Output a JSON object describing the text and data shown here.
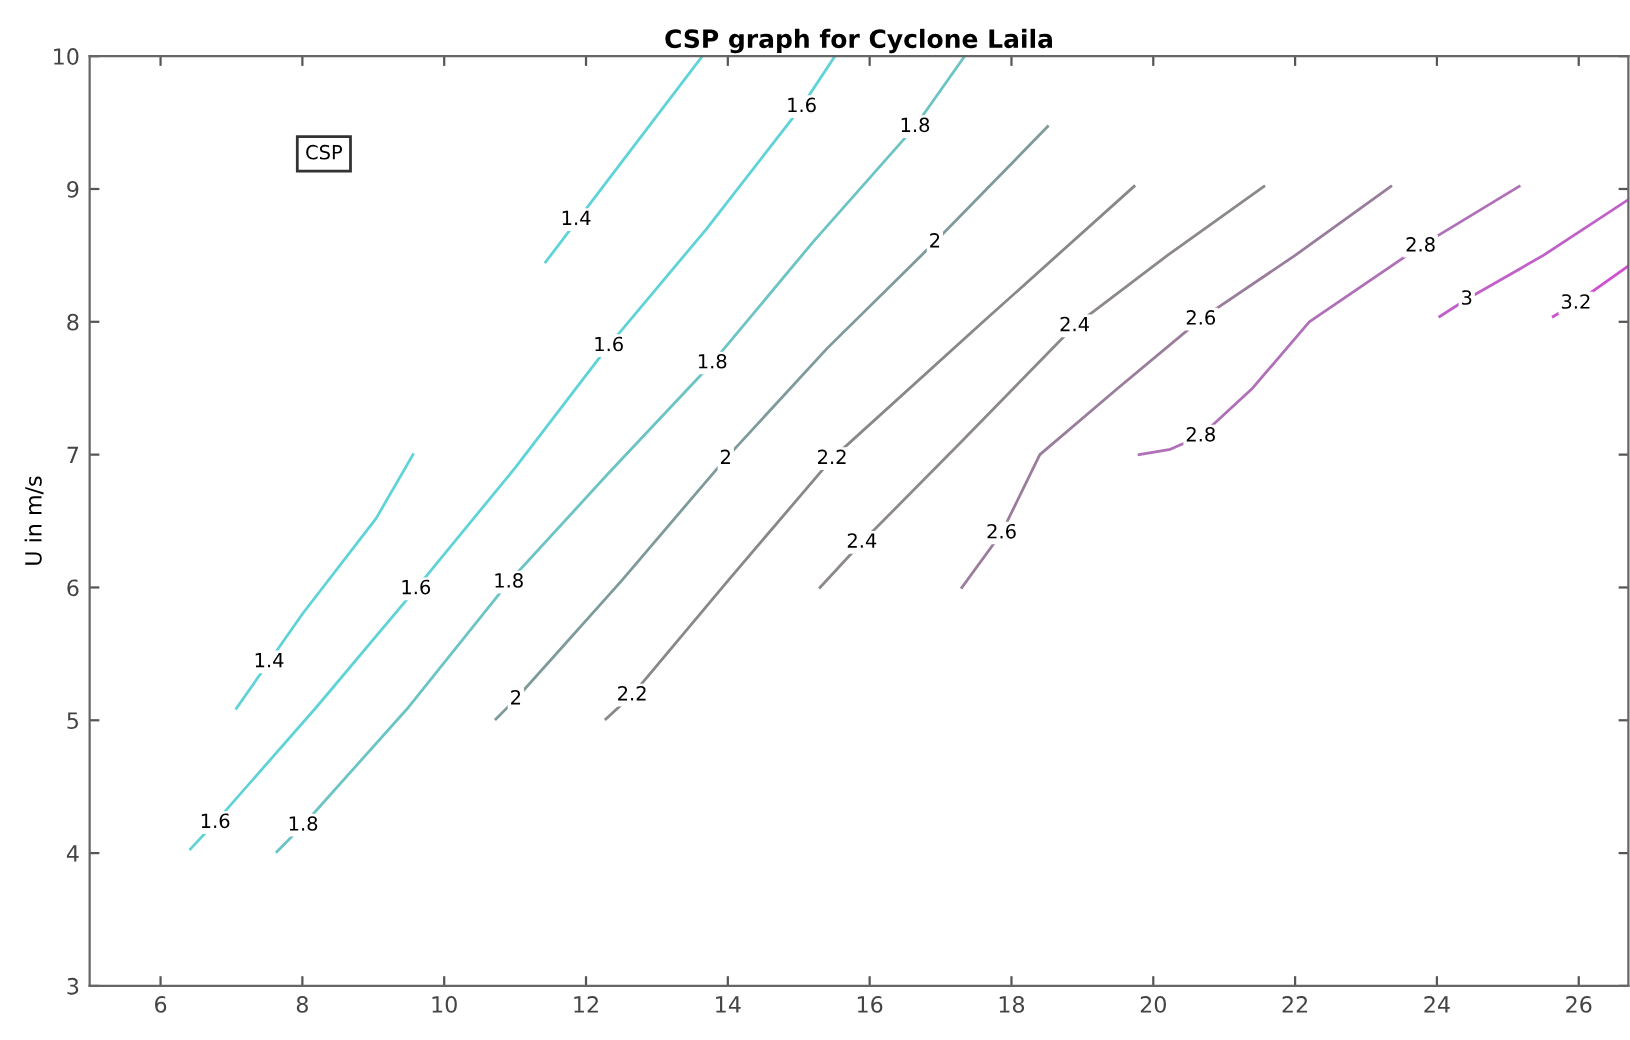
{
  "chart_data": {
    "type": "line",
    "title": "CSP graph for Cyclone Laila",
    "ylabel": "U in m/s",
    "grid": false,
    "xlim": [
      5,
      26.7
    ],
    "ylim": [
      3,
      10
    ],
    "xticks": [
      6,
      8,
      10,
      12,
      14,
      16,
      18,
      20,
      22,
      24,
      26
    ],
    "yticks": [
      3,
      4,
      5,
      6,
      7,
      8,
      9,
      10
    ],
    "series": [
      {
        "color": "#5fd3d8",
        "x": [
          7.07,
          8.0,
          9.04,
          9.56
        ],
        "values": [
          5.09,
          5.8,
          6.52,
          7.0
        ]
      },
      {
        "color": "#5fd3d8",
        "x": [
          11.43,
          12.5,
          13.64
        ],
        "values": [
          8.45,
          9.2,
          10.0
        ]
      },
      {
        "color": "#5fd3d8",
        "x": [
          6.42,
          6.77,
          8.2,
          9.6,
          11.0,
          12.32,
          13.7,
          15.04,
          15.51
        ],
        "values": [
          4.03,
          4.23,
          5.1,
          5.99,
          6.9,
          7.82,
          8.7,
          9.62,
          10.0
        ]
      },
      {
        "color": "#6cc4c4",
        "x": [
          7.64,
          8.01,
          9.5,
          10.91,
          12.3,
          13.78,
          15.2,
          16.64,
          17.34
        ],
        "values": [
          4.01,
          4.21,
          5.1,
          6.04,
          6.85,
          7.69,
          8.6,
          9.47,
          10.0
        ]
      },
      {
        "color": "#7f9a9a",
        "x": [
          10.73,
          11.01,
          12.5,
          13.97,
          15.4,
          16.92,
          18.51
        ],
        "values": [
          5.01,
          5.16,
          6.05,
          6.97,
          7.8,
          8.6,
          9.47
        ]
      },
      {
        "color": "#888888",
        "x": [
          12.28,
          12.65,
          14.0,
          15.47,
          17.6,
          19.73
        ],
        "values": [
          5.01,
          5.19,
          6.05,
          6.97,
          8.0,
          9.02
        ]
      },
      {
        "color": "#8c888c",
        "x": [
          15.3,
          15.89,
          17.3,
          18.89,
          20.2,
          21.56
        ],
        "values": [
          6.0,
          6.34,
          7.1,
          7.97,
          8.5,
          9.02
        ]
      },
      {
        "color": "#9a7c9c",
        "x": [
          17.3,
          17.86,
          18.4,
          19.5,
          20.67,
          22.0,
          23.35
        ],
        "values": [
          6.0,
          6.41,
          7.0,
          7.5,
          8.02,
          8.5,
          9.02
        ]
      },
      {
        "color": "#b070b8",
        "x": [
          19.8,
          20.24,
          20.67,
          21.4,
          22.2,
          23.77,
          25.16
        ],
        "values": [
          7.0,
          7.04,
          7.14,
          7.5,
          8.0,
          8.57,
          9.02
        ]
      },
      {
        "color": "#c060c8",
        "x": [
          24.04,
          24.42,
          25.5,
          26.7
        ],
        "values": [
          8.04,
          8.17,
          8.5,
          8.92
        ]
      },
      {
        "color": "#d050d0",
        "x": [
          25.64,
          25.96,
          26.7
        ],
        "values": [
          8.04,
          8.14,
          8.42
        ]
      }
    ],
    "annotations": [
      {
        "text": "1.4",
        "x": 7.53,
        "y": 5.44
      },
      {
        "text": "1.4",
        "x": 11.86,
        "y": 8.77
      },
      {
        "text": "1.6",
        "x": 6.77,
        "y": 4.23
      },
      {
        "text": "1.6",
        "x": 9.6,
        "y": 5.99
      },
      {
        "text": "1.6",
        "x": 12.32,
        "y": 7.82
      },
      {
        "text": "1.6",
        "x": 15.04,
        "y": 9.62
      },
      {
        "text": "1.8",
        "x": 8.01,
        "y": 4.21
      },
      {
        "text": "1.8",
        "x": 10.91,
        "y": 6.04
      },
      {
        "text": "1.8",
        "x": 13.78,
        "y": 7.69
      },
      {
        "text": "1.8",
        "x": 16.64,
        "y": 9.47
      },
      {
        "text": "2",
        "x": 11.01,
        "y": 5.16
      },
      {
        "text": "2",
        "x": 13.97,
        "y": 6.97
      },
      {
        "text": "2",
        "x": 16.92,
        "y": 8.6
      },
      {
        "text": "2.2",
        "x": 12.65,
        "y": 5.19
      },
      {
        "text": "2.2",
        "x": 15.47,
        "y": 6.97
      },
      {
        "text": "2.4",
        "x": 15.89,
        "y": 6.34
      },
      {
        "text": "2.4",
        "x": 18.89,
        "y": 7.97
      },
      {
        "text": "2.6",
        "x": 17.86,
        "y": 6.41
      },
      {
        "text": "2.6",
        "x": 20.67,
        "y": 8.02
      },
      {
        "text": "2.8",
        "x": 20.67,
        "y": 7.14
      },
      {
        "text": "2.8",
        "x": 23.77,
        "y": 8.57
      },
      {
        "text": "3",
        "x": 24.42,
        "y": 8.17
      },
      {
        "text": "3.2",
        "x": 25.96,
        "y": 8.14
      },
      "CSP"
    ]
  }
}
